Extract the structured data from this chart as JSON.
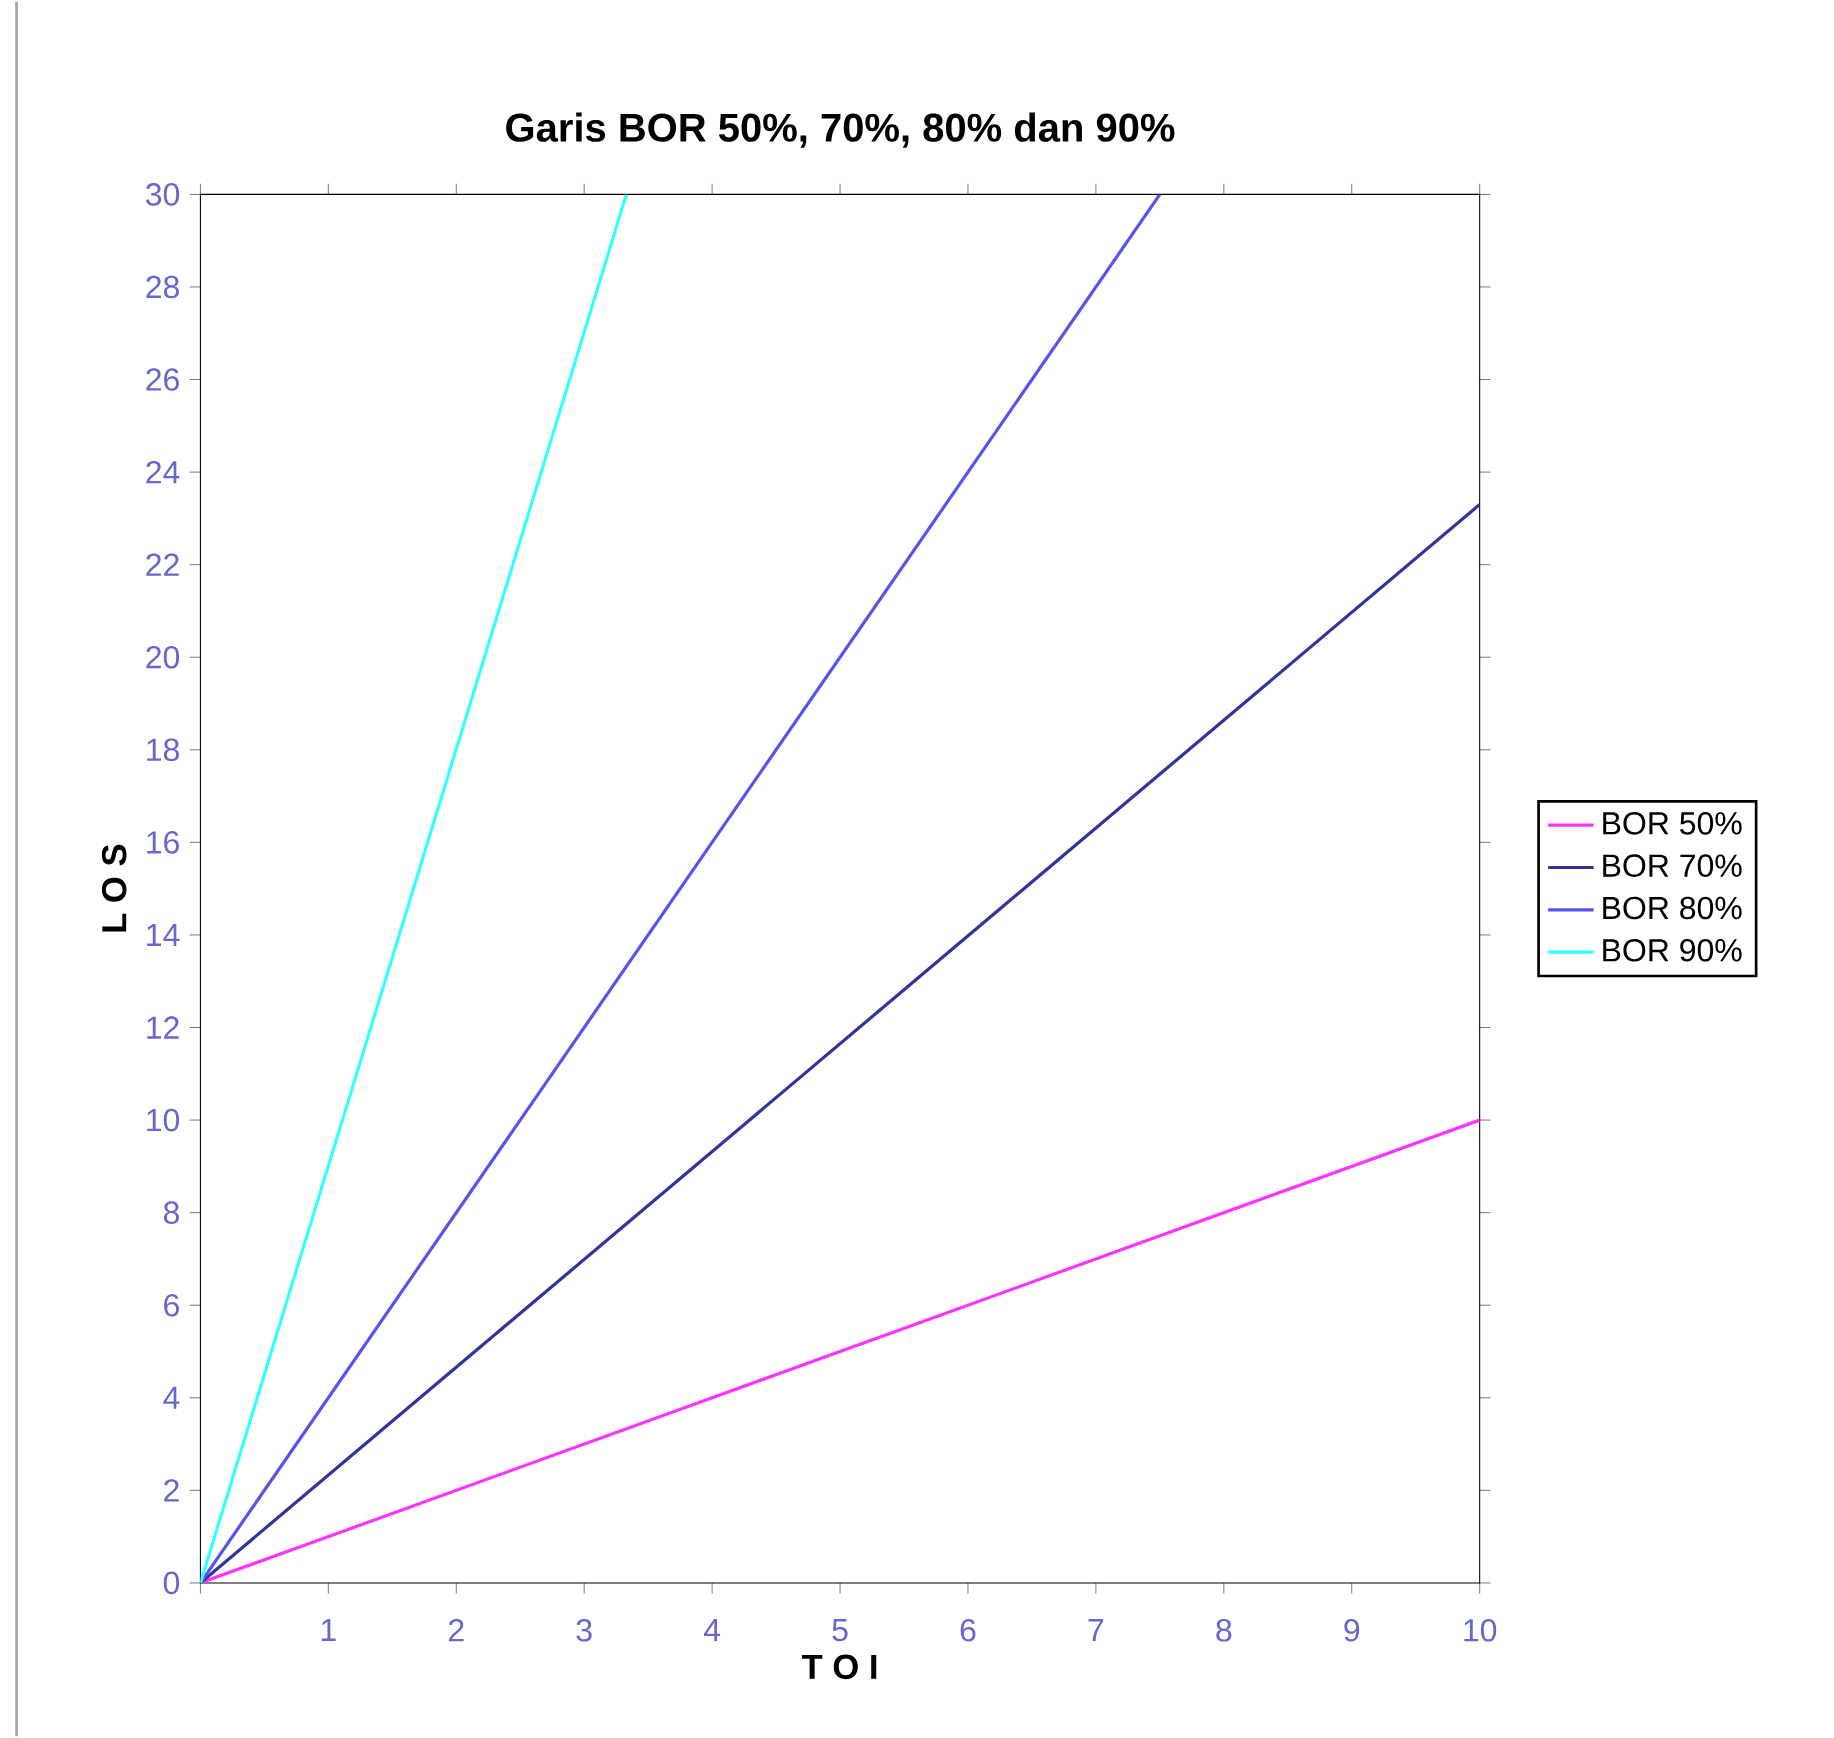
{
  "chart_data": {
    "type": "line",
    "title": "Garis BOR 50%, 70%, 80% dan 90%",
    "xlabel": "T O I",
    "ylabel": "L O S",
    "series": [
      {
        "name": "BOR 50%",
        "color": "#ff33ff",
        "x": [
          0,
          10
        ],
        "values": [
          0,
          10
        ]
      },
      {
        "name": "BOR 70%",
        "color": "#333399",
        "x": [
          0,
          10
        ],
        "values": [
          0,
          23.3
        ]
      },
      {
        "name": "BOR 80%",
        "color": "#5555ee",
        "x": [
          0,
          7.5
        ],
        "values": [
          0,
          30
        ]
      },
      {
        "name": "BOR 90%",
        "color": "#33ffff",
        "x": [
          0,
          3.33
        ],
        "values": [
          0,
          30
        ]
      }
    ],
    "xlim": [
      0,
      10
    ],
    "ylim": [
      0,
      30
    ],
    "xticks": [
      {
        "value": 0,
        "label": null
      },
      1,
      2,
      3,
      4,
      5,
      6,
      7,
      8,
      9,
      10
    ],
    "yticks": [
      0,
      2,
      4,
      6,
      8,
      10,
      12,
      14,
      16,
      18,
      20,
      22,
      24,
      26,
      28,
      30
    ],
    "legend": "right",
    "grid": false,
    "marker": "none",
    "line_style": "solid"
  }
}
